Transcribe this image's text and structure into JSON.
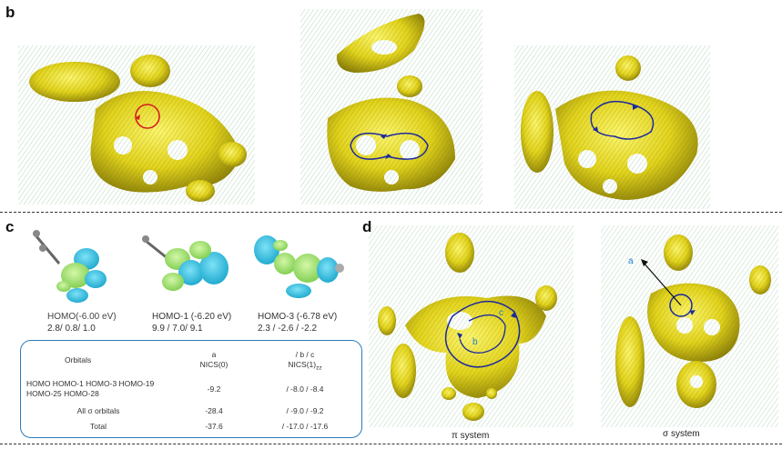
{
  "panels": {
    "b": "b",
    "c": "c",
    "d": "d"
  },
  "panel_c": {
    "orbitals": [
      {
        "label": "HOMO(-6.00 eV)",
        "values": "2.8/ 0.8/ 1.0"
      },
      {
        "label": "HOMO-1 (-6.20 eV)",
        "values": "9.9 / 7.0/ 9.1"
      },
      {
        "label": "HOMO-3 (-6.78 eV)",
        "values": "2.3 / -2.6 / -2.2"
      }
    ],
    "table": {
      "header": {
        "orbitals": "Orbitals",
        "a_letter": "a",
        "a_name": "NICS(0)",
        "bc_letter": "/ b / c",
        "bc_name": "NICS(1)",
        "bc_sub": "zz"
      },
      "rows": [
        {
          "orbitals_line1": "HOMO HOMO-1 HOMO-3 HOMO-19",
          "orbitals_line2": "HOMO-25 HOMO-28",
          "a": "-9.2",
          "bc": "/ -8.0 / -8.4"
        },
        {
          "orbitals_line1": "All σ orbitals",
          "orbitals_line2": "",
          "a": "-28.4",
          "bc": "/ -9.0 / -9.2"
        },
        {
          "orbitals_line1": "Total",
          "orbitals_line2": "",
          "a": "-37.6",
          "bc": "/ -17.0 / -17.6"
        }
      ]
    }
  },
  "panel_d": {
    "pi_label": "π system",
    "sigma_label": "σ system",
    "letters": {
      "a": "a",
      "b": "b",
      "c": "c"
    }
  },
  "colors": {
    "isosurface": "#e8d81a",
    "isosurface_dark": "#8a7a00",
    "vector": "#2e8b3a",
    "lobe_cyan": "#29c4e8",
    "lobe_green": "#9be36a",
    "ring_blue": "#1c2a9c",
    "ring_red": "#d42020",
    "table_border": "#2b7bb9"
  }
}
